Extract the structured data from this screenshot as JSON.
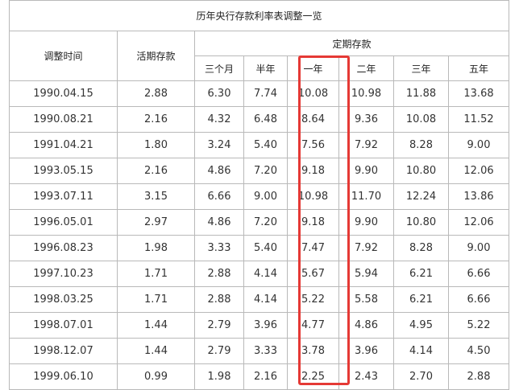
{
  "table": {
    "title": "历年央行存款利率表调整一览",
    "headers": {
      "date": "调整时间",
      "demand": "活期存款",
      "fixed_group": "定期存款",
      "terms": [
        "三个月",
        "半年",
        "一年",
        "二年",
        "三年",
        "五年"
      ]
    },
    "rows": [
      {
        "date": "1990.04.15",
        "demand": "2.88",
        "fixed": [
          "6.30",
          "7.74",
          "10.08",
          "10.98",
          "11.88",
          "13.68"
        ]
      },
      {
        "date": "1990.08.21",
        "demand": "2.16",
        "fixed": [
          "4.32",
          "6.48",
          "8.64",
          "9.36",
          "10.08",
          "11.52"
        ]
      },
      {
        "date": "1991.04.21",
        "demand": "1.80",
        "fixed": [
          "3.24",
          "5.40",
          "7.56",
          "7.92",
          "8.28",
          "9.00"
        ]
      },
      {
        "date": "1993.05.15",
        "demand": "2.16",
        "fixed": [
          "4.86",
          "7.20",
          "9.18",
          "9.90",
          "10.80",
          "12.06"
        ]
      },
      {
        "date": "1993.07.11",
        "demand": "3.15",
        "fixed": [
          "6.66",
          "9.00",
          "10.98",
          "11.70",
          "12.24",
          "13.86"
        ]
      },
      {
        "date": "1996.05.01",
        "demand": "2.97",
        "fixed": [
          "4.86",
          "7.20",
          "9.18",
          "9.90",
          "10.80",
          "12.06"
        ]
      },
      {
        "date": "1996.08.23",
        "demand": "1.98",
        "fixed": [
          "3.33",
          "5.40",
          "7.47",
          "7.92",
          "8.28",
          "9.00"
        ]
      },
      {
        "date": "1997.10.23",
        "demand": "1.71",
        "fixed": [
          "2.88",
          "4.14",
          "5.67",
          "5.94",
          "6.21",
          "6.66"
        ]
      },
      {
        "date": "1998.03.25",
        "demand": "1.71",
        "fixed": [
          "2.88",
          "4.14",
          "5.22",
          "5.58",
          "6.21",
          "6.66"
        ]
      },
      {
        "date": "1998.07.01",
        "demand": "1.44",
        "fixed": [
          "2.79",
          "3.96",
          "4.77",
          "4.86",
          "4.95",
          "5.22"
        ]
      },
      {
        "date": "1998.12.07",
        "demand": "1.44",
        "fixed": [
          "2.79",
          "3.33",
          "3.78",
          "3.96",
          "4.14",
          "4.50"
        ]
      },
      {
        "date": "1999.06.10",
        "demand": "0.99",
        "fixed": [
          "1.98",
          "2.16",
          "2.25",
          "2.43",
          "2.70",
          "2.88"
        ]
      }
    ]
  },
  "highlight": {
    "column": "一年",
    "color": "#e53935"
  }
}
